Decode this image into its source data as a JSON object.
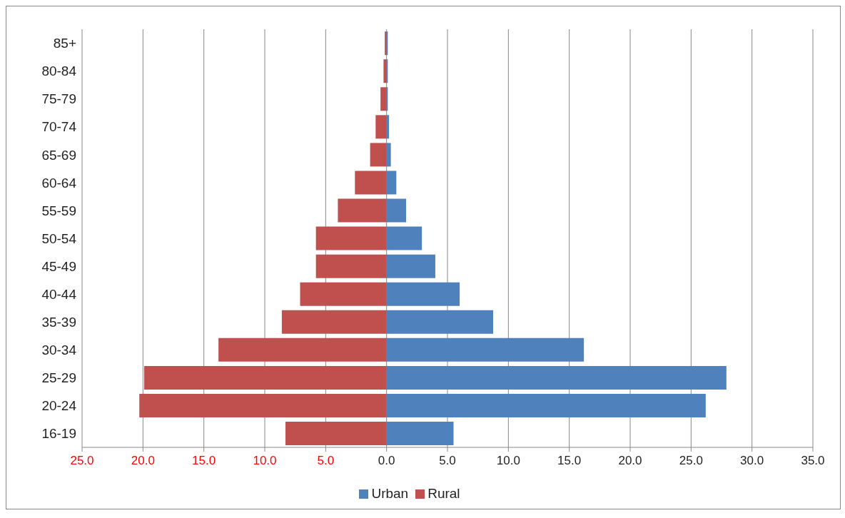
{
  "chart_data": {
    "type": "bar",
    "orientation": "horizontal",
    "categories": [
      "85+",
      "80-84",
      "75-79",
      "70-74",
      "65-69",
      "60-64",
      "55-59",
      "50-54",
      "45-49",
      "40-44",
      "35-39",
      "30-34",
      "25-29",
      "20-24",
      "16-19"
    ],
    "series": [
      {
        "name": "Urban",
        "color": "#4f81bd",
        "values": [
          0.1,
          0.1,
          0.1,
          0.2,
          0.35,
          0.8,
          1.6,
          2.9,
          4.0,
          6.0,
          8.75,
          16.2,
          27.9,
          26.2,
          5.5
        ]
      },
      {
        "name": "Rural",
        "color": "#c0504d",
        "values": [
          -0.15,
          -0.25,
          -0.5,
          -0.9,
          -1.35,
          -2.6,
          -4.0,
          -5.8,
          -5.8,
          -7.1,
          -8.6,
          -13.8,
          -19.9,
          -20.3,
          -8.3
        ]
      }
    ],
    "xlim": [
      -25,
      35
    ],
    "xticks": [
      {
        "value": -25,
        "label": "25.0"
      },
      {
        "value": -20,
        "label": "20.0"
      },
      {
        "value": -15,
        "label": "15.0"
      },
      {
        "value": -10,
        "label": "10.0"
      },
      {
        "value": -5,
        "label": "5.0"
      },
      {
        "value": 0,
        "label": "0.0"
      },
      {
        "value": 5,
        "label": "5.0"
      },
      {
        "value": 10,
        "label": "10.0"
      },
      {
        "value": 15,
        "label": "15.0"
      },
      {
        "value": 20,
        "label": "20.0"
      },
      {
        "value": 25,
        "label": "25.0"
      },
      {
        "value": 30,
        "label": "30.0"
      },
      {
        "value": 35,
        "label": "35.0"
      }
    ],
    "stacked": true,
    "grid": "x",
    "legend": "bottom"
  }
}
